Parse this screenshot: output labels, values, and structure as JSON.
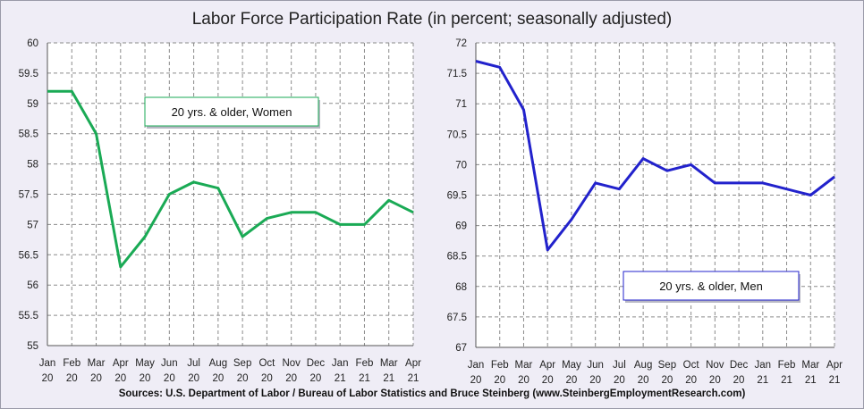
{
  "title": "Labor Force Participation Rate (in percent; seasonally adjusted)",
  "source": "Sources: U.S. Department of Labor / Bureau of Labor Statistics and Bruce Steinberg (www.SteinbergEmploymentResearch.com)",
  "chart_data": [
    {
      "type": "line",
      "categories": [
        "Jan 20",
        "Feb 20",
        "Mar 20",
        "Apr 20",
        "May 20",
        "Jun 20",
        "Jul 20",
        "Aug 20",
        "Sep 20",
        "Oct 20",
        "Nov 20",
        "Dec 20",
        "Jan 21",
        "Feb 21",
        "Mar 21",
        "Apr 21"
      ],
      "tick_labels": [
        [
          "Jan",
          "20"
        ],
        [
          "Feb",
          "20"
        ],
        [
          "Mar",
          "20"
        ],
        [
          "Apr",
          "20"
        ],
        [
          "May",
          "20"
        ],
        [
          "Jun",
          "20"
        ],
        [
          "Jul",
          "20"
        ],
        [
          "Aug",
          "20"
        ],
        [
          "Sep",
          "20"
        ],
        [
          "Oct",
          "20"
        ],
        [
          "Nov",
          "20"
        ],
        [
          "Dec",
          "20"
        ],
        [
          "Jan",
          "21"
        ],
        [
          "Feb",
          "21"
        ],
        [
          "Mar",
          "21"
        ],
        [
          "Apr",
          "21"
        ]
      ],
      "series": [
        {
          "name": "20 yrs. & older, Women",
          "color": "#1aaa55",
          "values": [
            59.2,
            59.2,
            58.5,
            56.3,
            56.8,
            57.5,
            57.7,
            57.6,
            56.8,
            57.1,
            57.2,
            57.2,
            57.0,
            57.0,
            57.4,
            57.2
          ]
        }
      ],
      "ylim": [
        55,
        60
      ],
      "yticks": [
        "55",
        "55.5",
        "56",
        "56.5",
        "57",
        "57.5",
        "58",
        "58.5",
        "59",
        "59.5",
        "60"
      ],
      "grid": true,
      "legend_position": "top-center",
      "plot_background": "#ffffff"
    },
    {
      "type": "line",
      "categories": [
        "Jan 20",
        "Feb 20",
        "Mar 20",
        "Apr 20",
        "May 20",
        "Jun 20",
        "Jul 20",
        "Aug 20",
        "Sep 20",
        "Oct 20",
        "Nov 20",
        "Dec 20",
        "Jan 21",
        "Feb 21",
        "Mar 21",
        "Apr 21"
      ],
      "tick_labels": [
        [
          "Jan",
          "20"
        ],
        [
          "Feb",
          "20"
        ],
        [
          "Mar",
          "20"
        ],
        [
          "Apr",
          "20"
        ],
        [
          "May",
          "20"
        ],
        [
          "Jun",
          "20"
        ],
        [
          "Jul",
          "20"
        ],
        [
          "Aug",
          "20"
        ],
        [
          "Sep",
          "20"
        ],
        [
          "Oct",
          "20"
        ],
        [
          "Nov",
          "20"
        ],
        [
          "Dec",
          "20"
        ],
        [
          "Jan",
          "21"
        ],
        [
          "Feb",
          "21"
        ],
        [
          "Mar",
          "21"
        ],
        [
          "Apr",
          "21"
        ]
      ],
      "series": [
        {
          "name": "20 yrs. & older, Men",
          "color": "#2222cc",
          "values": [
            71.7,
            71.6,
            70.9,
            68.6,
            69.1,
            69.7,
            69.6,
            70.1,
            69.9,
            70.0,
            69.7,
            69.7,
            69.7,
            69.6,
            69.5,
            69.8
          ]
        }
      ],
      "ylim": [
        67,
        72
      ],
      "yticks": [
        "67",
        "67.5",
        "68",
        "68.5",
        "69",
        "69.5",
        "70",
        "70.5",
        "71",
        "71.5",
        "72"
      ],
      "grid": true,
      "legend_position": "bottom-center",
      "plot_background": "#ffffff"
    }
  ]
}
